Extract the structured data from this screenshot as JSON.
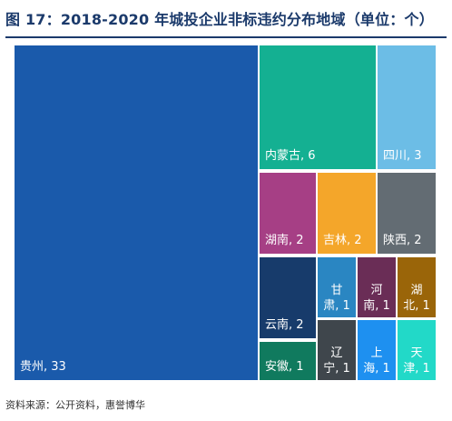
{
  "title": "图 17：2018-2020 年城投企业非标违约分布地域（单位：个）",
  "source": "资料来源：公开资料，惠誉博华",
  "chart_data": {
    "type": "treemap",
    "unit": "个",
    "values": [
      {
        "name": "贵州",
        "value": 33,
        "label": "贵州, 33",
        "color": "#1a5aab"
      },
      {
        "name": "内蒙古",
        "value": 6,
        "label": "内蒙古, 6",
        "color": "#14b092"
      },
      {
        "name": "四川",
        "value": 3,
        "label": "四川, 3",
        "color": "#6cbde6"
      },
      {
        "name": "湖南",
        "value": 2,
        "label": "湖南, 2",
        "color": "#a63f85"
      },
      {
        "name": "吉林",
        "value": 2,
        "label": "吉林, 2",
        "color": "#f4a62a"
      },
      {
        "name": "陕西",
        "value": 2,
        "label": "陕西, 2",
        "color": "#636c73"
      },
      {
        "name": "云南",
        "value": 2,
        "label": "云南, 2",
        "color": "#173b6b"
      },
      {
        "name": "安徽",
        "value": 1,
        "label": "安徽, 1",
        "color": "#107a5e"
      },
      {
        "name": "甘肃",
        "value": 1,
        "label": "甘\n肃, 1",
        "color": "#2a86c2"
      },
      {
        "name": "河南",
        "value": 1,
        "label": "河\n南, 1",
        "color": "#6a2d56"
      },
      {
        "name": "湖北",
        "value": 1,
        "label": "湖\n北, 1",
        "color": "#9a6509"
      },
      {
        "name": "辽宁",
        "value": 1,
        "label": "辽\n宁, 1",
        "color": "#3f464c"
      },
      {
        "name": "上海",
        "value": 1,
        "label": "上\n海, 1",
        "color": "#1e90f0"
      },
      {
        "name": "天津",
        "value": 1,
        "label": "天\n津, 1",
        "color": "#22d9c8"
      }
    ]
  }
}
